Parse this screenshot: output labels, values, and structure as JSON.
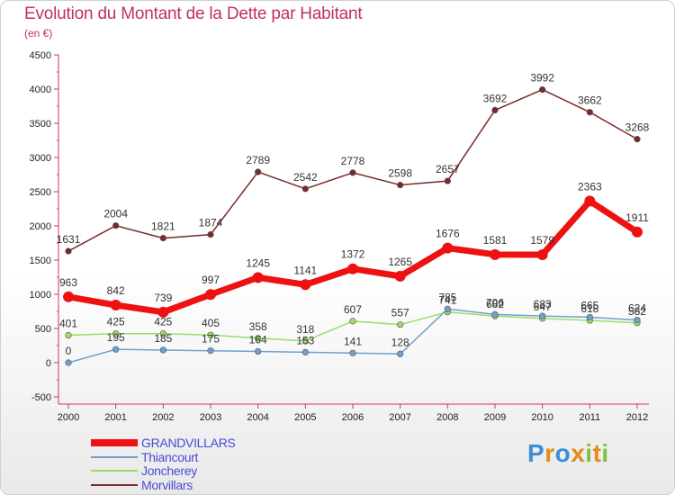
{
  "header": {
    "title": "Evolution du Montant de la Dette par Habitant",
    "unit": "(en €)"
  },
  "chart_data": {
    "type": "line",
    "title": "Evolution du Montant de la Dette par Habitant",
    "subtitle": "(en €)",
    "xlabel": "",
    "ylabel": "",
    "categories": [
      "2000",
      "2001",
      "2002",
      "2003",
      "2004",
      "2005",
      "2006",
      "2007",
      "2008",
      "2009",
      "2010",
      "2011",
      "2012"
    ],
    "ylim": [
      -500,
      4500
    ],
    "yticks": [
      -500,
      0,
      500,
      1000,
      1500,
      2000,
      2500,
      3000,
      3500,
      4000,
      4500
    ],
    "grid": false,
    "legend_position": "bottom-left",
    "series": [
      {
        "name": "GRANDVILLARS",
        "color": "#ee1111",
        "values": [
          963,
          842,
          739,
          997,
          1245,
          1141,
          1372,
          1265,
          1676,
          1581,
          1579,
          2363,
          1911
        ]
      },
      {
        "name": "Thiancourt",
        "color": "#6fa0cf",
        "values": [
          0,
          195,
          185,
          175,
          164,
          153,
          141,
          128,
          785,
          706,
          683,
          665,
          624
        ]
      },
      {
        "name": "Joncherey",
        "color": "#99dd66",
        "values": [
          401,
          425,
          425,
          405,
          358,
          318,
          607,
          557,
          741,
          682,
          647,
          618,
          582
        ]
      },
      {
        "name": "Morvillars",
        "color": "#7a2a2a",
        "values": [
          1631,
          2004,
          1821,
          1874,
          2789,
          2542,
          2778,
          2598,
          2657,
          3692,
          3992,
          3662,
          3268
        ]
      }
    ]
  },
  "logo": {
    "letters": [
      "P",
      "r",
      "o",
      "x",
      "i",
      "t",
      "i"
    ],
    "colors": [
      "#3b8fd9",
      "#e68a1a",
      "#3b8fd9",
      "#e68a1a",
      "#7cc242",
      "#e68a1a",
      "#7cc242"
    ]
  }
}
